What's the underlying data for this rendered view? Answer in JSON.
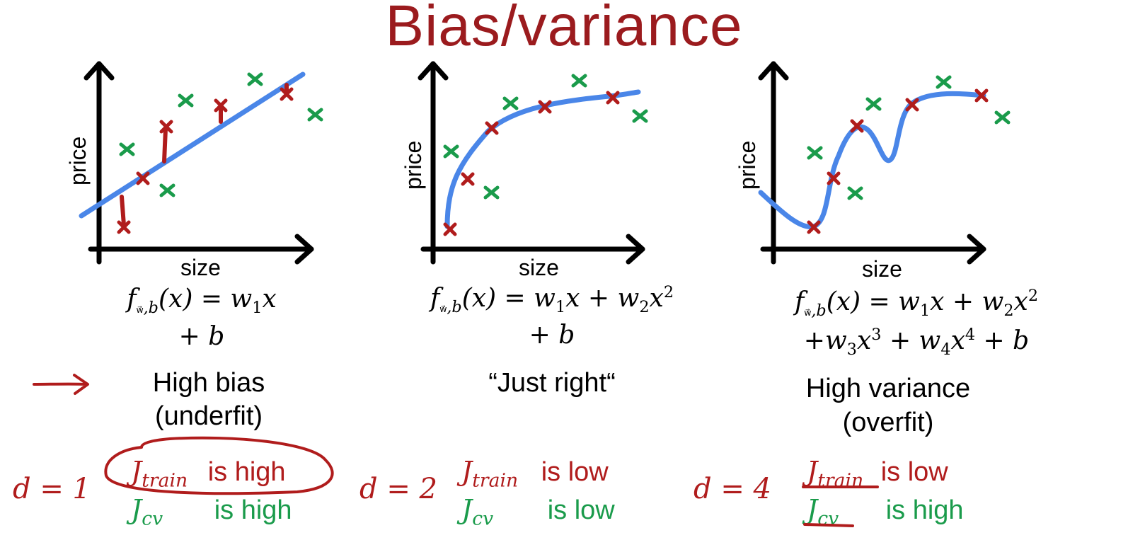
{
  "title": "Bias/variance",
  "accent_red": "#b01c1c",
  "green": "#1a9b4b",
  "blue": "#4a86e8",
  "panels": [
    {
      "xlabel": "size",
      "ylabel": "price",
      "formula_line1": "f_{w,b}(x) = w1 x",
      "formula_line2": "+ b",
      "caption_line1": "High bias",
      "caption_line2": "(underfit)",
      "d_label": "d = 1",
      "j_train_word": "is high",
      "j_cv_word": "is high"
    },
    {
      "xlabel": "size",
      "ylabel": "price",
      "formula_line1": "f_{w,b}(x) = w1 x + w2 x^2",
      "formula_line2": "+ b",
      "caption_line1": "“Just right“",
      "caption_line2": "",
      "d_label": "d = 2",
      "j_train_word": "is low",
      "j_cv_word": "is low"
    },
    {
      "xlabel": "size",
      "ylabel": "price",
      "formula_line1": "f_{w,b}(x) = w1 x + w2 x^2",
      "formula_line2": "+w3 x^3 + w4 x^4 + b",
      "caption_line1": "High variance",
      "caption_line2": "(overfit)",
      "d_label": "d = 4",
      "j_train_word": "is low",
      "j_cv_word": "is high"
    }
  ],
  "j_train_symbol": "J",
  "j_train_sub": "train",
  "j_cv_symbol": "J",
  "j_cv_sub": "cv"
}
